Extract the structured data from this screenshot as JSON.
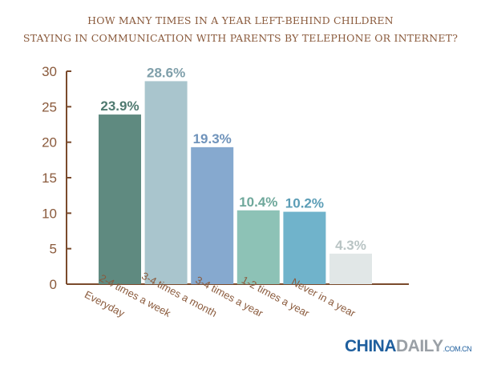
{
  "chart_data": {
    "type": "bar",
    "title_lines": [
      "HOW MANY TIMES IN A YEAR LEFT-BEHIND CHILDREN",
      "STAYING IN COMMUNICATION WITH PARENTS BY TELEPHONE OR INTERNET?"
    ],
    "categories": [
      "Everyday",
      "2-4 times a week",
      "3-4 times a month",
      "3-4 times a year",
      "1-2 times a year",
      "Never in a year"
    ],
    "values": [
      23.9,
      28.6,
      19.3,
      10.4,
      10.2,
      4.3
    ],
    "data_labels": [
      "23.9%",
      "28.6%",
      "19.3%",
      "10.4%",
      "10.2%",
      "4.3%"
    ],
    "colors": [
      "#5f8a80",
      "#a9c5cd",
      "#86a9cf",
      "#8dc2b6",
      "#70b3cb",
      "#e1e7e7"
    ],
    "label_colors": [
      "#4f7a70",
      "#7f9faa",
      "#6f93bb",
      "#6fa89b",
      "#5b9db6",
      "#b9c4c4"
    ],
    "ylim": [
      0,
      30
    ],
    "yticks": [
      0,
      5,
      10,
      15,
      20,
      25,
      30
    ],
    "axis_color": "#7a4a2c",
    "grid": false,
    "legend": "none",
    "xlabel": "",
    "ylabel": ""
  },
  "logo": {
    "part1": "CHINA",
    "part2": "DAILY",
    "part3": ".COM.CN"
  }
}
